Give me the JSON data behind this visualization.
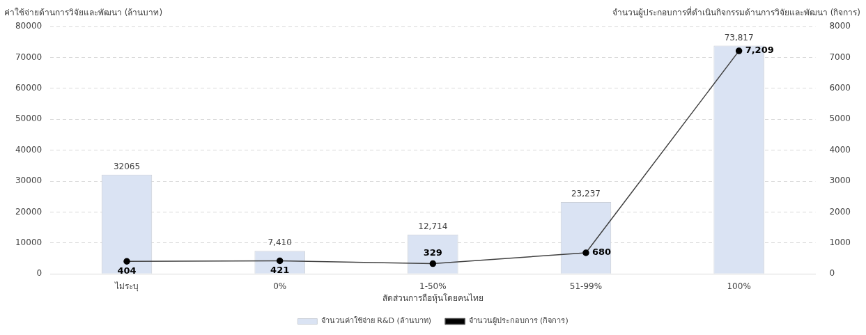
{
  "chart_data": {
    "type": "bar",
    "xlabel": "สัดส่วนการถือหุ้นโดยคนไทย",
    "ylabel": "ค่าใช้จ่ายด้านการวิจัยและพัฒนา  (ล้านบาท)",
    "y2label": "จำนวนผู้ประกอบการที่ดำเนินกิจกรรมด้านการวิจัยและพัฒนา (กิจการ)",
    "categories": [
      "ไม่ระบุ",
      "0%",
      "1-50%",
      "51-99%",
      "100%"
    ],
    "series": [
      {
        "name": "จำนวนค่าใช้จ่าย R&D (ล้านบาท)",
        "color": "#dae3f3",
        "values": [
          32065,
          7410,
          12714,
          23237,
          73817
        ],
        "value_labels": [
          "32065",
          "7,410",
          "12,714",
          "23,237",
          "73,817"
        ]
      },
      {
        "name": "จำนวนผู้ประกอบการ (กิจการ)",
        "type": "line",
        "axis": "y2",
        "color": "#000000",
        "marker": "circle",
        "values": [
          404,
          421,
          329,
          680,
          7209
        ],
        "value_labels": [
          "404",
          "421",
          "329",
          "680",
          "7,209"
        ]
      }
    ],
    "ylim": [
      0,
      80000
    ],
    "yticks": [
      0,
      10000,
      20000,
      30000,
      40000,
      50000,
      60000,
      70000,
      80000
    ],
    "y2lim": [
      0,
      8000
    ],
    "y2ticks": [
      0,
      1000,
      2000,
      3000,
      4000,
      5000,
      6000,
      7000,
      8000
    ],
    "grid": "y",
    "legend": "bottom"
  }
}
